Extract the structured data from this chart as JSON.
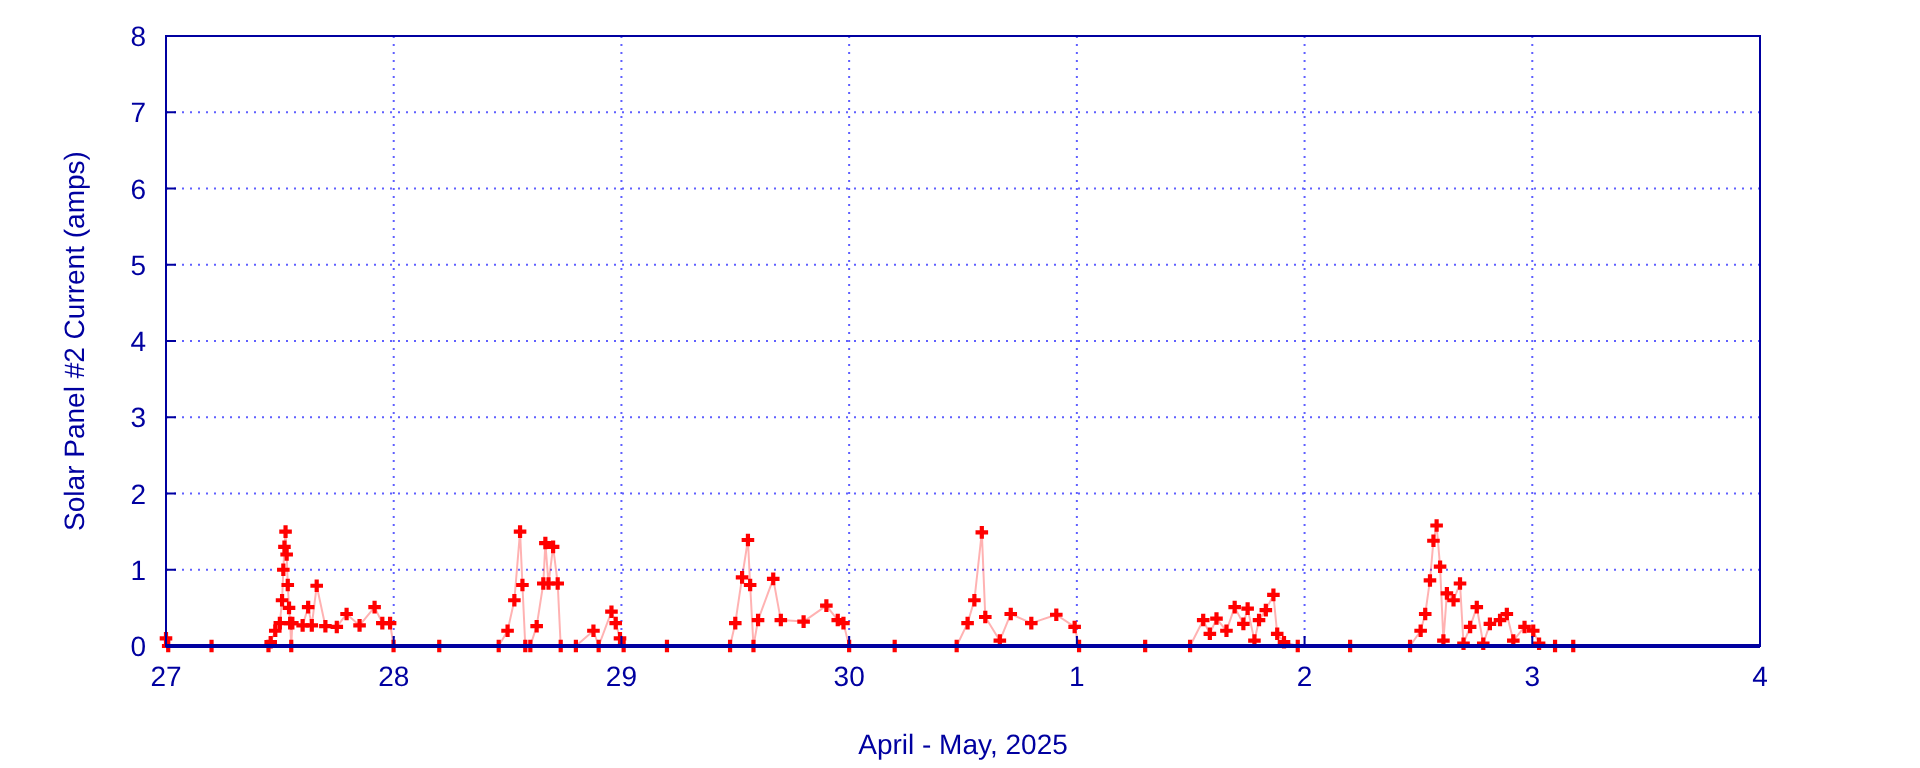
{
  "chart_data": {
    "type": "line",
    "xlabel": "April - May, 2025",
    "ylabel": "Solar Panel #2 Current (amps)",
    "xlim": [
      "2025-04-27",
      "2025-05-04"
    ],
    "xticks": [
      {
        "value": "2025-04-27",
        "label": "27"
      },
      {
        "value": "2025-04-28",
        "label": "28"
      },
      {
        "value": "2025-04-29",
        "label": "29"
      },
      {
        "value": "2025-04-30",
        "label": "30"
      },
      {
        "value": "2025-05-01",
        "label": "1"
      },
      {
        "value": "2025-05-02",
        "label": "2"
      },
      {
        "value": "2025-05-03",
        "label": "3"
      },
      {
        "value": "2025-05-04",
        "label": "4"
      }
    ],
    "ylim": [
      0,
      8
    ],
    "yticks": [
      0,
      1,
      2,
      3,
      4,
      5,
      6,
      7,
      8
    ],
    "grid": true,
    "marker": "cross",
    "line_style": "solid",
    "series": [
      {
        "color": "#ff0000",
        "x": [
          "2025-04-27T00:00",
          "2025-04-27T00:14",
          "2025-04-27T04:48",
          "2025-04-27T10:48",
          "2025-04-27T11:02",
          "2025-04-27T11:31",
          "2025-04-27T12:00",
          "2025-04-27T12:14",
          "2025-04-27T12:22",
          "2025-04-27T12:29",
          "2025-04-27T12:36",
          "2025-04-27T12:43",
          "2025-04-27T12:50",
          "2025-04-27T12:58",
          "2025-04-27T13:05",
          "2025-04-27T13:12",
          "2025-04-27T13:19",
          "2025-04-27T14:24",
          "2025-04-27T14:59",
          "2025-04-27T15:22",
          "2025-04-27T15:53",
          "2025-04-27T16:48",
          "2025-04-27T18:00",
          "2025-04-27T19:02",
          "2025-04-27T20:24",
          "2025-04-27T21:59",
          "2025-04-27T22:48",
          "2025-04-27T23:37",
          "2025-04-27T23:59",
          "2025-04-28T04:48",
          "2025-04-28T11:04",
          "2025-04-28T12:00",
          "2025-04-28T12:43",
          "2025-04-28T13:19",
          "2025-04-28T13:34",
          "2025-04-28T13:52",
          "2025-04-28T14:24",
          "2025-04-28T15:04",
          "2025-04-28T15:46",
          "2025-04-28T15:59",
          "2025-04-28T16:19",
          "2025-04-28T16:48",
          "2025-04-28T17:17",
          "2025-04-28T17:36",
          "2025-04-28T19:12",
          "2025-04-28T21:03",
          "2025-04-28T21:36",
          "2025-04-28T22:57",
          "2025-04-28T23:24",
          "2025-04-28T23:51",
          "2025-04-29T00:14",
          "2025-04-29T04:48",
          "2025-04-29T11:27",
          "2025-04-29T12:00",
          "2025-04-29T12:43",
          "2025-04-29T13:20",
          "2025-04-29T13:34",
          "2025-04-29T13:55",
          "2025-04-29T14:24",
          "2025-04-29T16:00",
          "2025-04-29T16:48",
          "2025-04-29T19:12",
          "2025-04-29T21:36",
          "2025-04-29T22:48",
          "2025-04-29T23:24",
          "2025-04-30T00:00",
          "2025-04-30T04:48",
          "2025-04-30T11:20",
          "2025-04-30T12:29",
          "2025-04-30T13:12",
          "2025-04-30T13:59",
          "2025-04-30T14:21",
          "2025-04-30T15:53",
          "2025-04-30T17:02",
          "2025-04-30T19:12",
          "2025-04-30T21:50",
          "2025-04-30T23:46",
          "2025-05-01T00:14",
          "2025-05-01T07:12",
          "2025-05-01T11:56",
          "2025-05-01T13:19",
          "2025-05-01T14:01",
          "2025-05-01T14:43",
          "2025-05-01T15:46",
          "2025-05-01T16:38",
          "2025-05-01T17:33",
          "2025-05-01T18:00",
          "2025-05-01T18:43",
          "2025-05-01T19:12",
          "2025-05-01T19:55",
          "2025-05-01T20:43",
          "2025-05-01T21:07",
          "2025-05-01T21:50",
          "2025-05-01T23:17",
          "2025-05-02T04:48",
          "2025-05-02T11:07",
          "2025-05-02T12:14",
          "2025-05-02T12:43",
          "2025-05-02T13:13",
          "2025-05-02T13:35",
          "2025-05-02T13:55",
          "2025-05-02T14:17",
          "2025-05-02T14:38",
          "2025-05-02T15:00",
          "2025-05-02T15:42",
          "2025-05-02T16:23",
          "2025-05-02T16:45",
          "2025-05-02T17:27",
          "2025-05-02T18:09",
          "2025-05-02T18:50",
          "2025-05-02T19:32",
          "2025-05-02T20:36",
          "2025-05-02T21:19",
          "2025-05-02T22:00",
          "2025-05-02T23:11",
          "2025-05-03T00:06",
          "2025-05-03T00:43",
          "2025-05-03T02:24",
          "2025-05-03T04:19"
        ],
        "values": [
          0.1,
          0,
          0,
          0,
          0.05,
          0.2,
          0.3,
          0.6,
          1.0,
          1.3,
          1.5,
          1.2,
          0.8,
          0.5,
          0.3,
          0,
          0.3,
          0.27,
          0.51,
          0.27,
          0.79,
          0.26,
          0.25,
          0.42,
          0.27,
          0.51,
          0.3,
          0.3,
          0,
          0,
          0,
          0.2,
          0.6,
          1.5,
          0.8,
          0,
          0,
          0.26,
          0.82,
          1.35,
          0.82,
          1.3,
          0.82,
          0,
          0,
          0.2,
          0,
          0.45,
          0.3,
          0.1,
          0,
          0,
          0,
          0.3,
          0.9,
          1.39,
          0.8,
          0,
          0.34,
          0.88,
          0.34,
          0.32,
          0.53,
          0.34,
          0.3,
          0,
          0,
          0,
          0.3,
          0.6,
          1.49,
          0.38,
          0.07,
          0.42,
          0.3,
          0.41,
          0.25,
          0,
          0,
          0,
          0.34,
          0.16,
          0.36,
          0.2,
          0.51,
          0.29,
          0.49,
          0.07,
          0.34,
          0.47,
          0.67,
          0.16,
          0.05,
          0,
          0,
          0,
          0.2,
          0.42,
          0.86,
          1.38,
          1.58,
          1.04,
          0.07,
          0.69,
          0.6,
          0.82,
          0.03,
          0.25,
          0.51,
          0.03,
          0.29,
          0.34,
          0.42,
          0.07,
          0.25,
          0.2,
          0.03,
          0,
          0
        ]
      }
    ]
  }
}
